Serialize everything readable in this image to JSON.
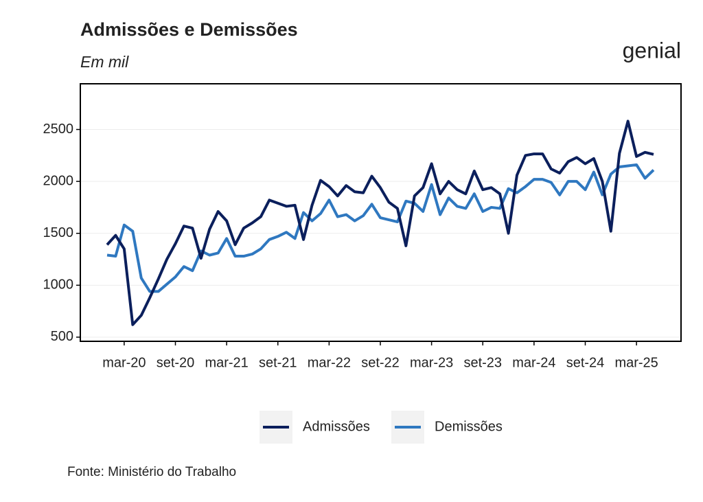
{
  "chart_data": {
    "type": "line",
    "title": "Admissões e Demissões",
    "subtitle": "Em mil",
    "logo": "genial",
    "source": "Fonte: Ministério do Trabalho",
    "categories": [
      null,
      null,
      "mar-20",
      null,
      null,
      null,
      null,
      null,
      "set-20",
      null,
      null,
      null,
      null,
      null,
      "mar-21",
      null,
      null,
      null,
      null,
      null,
      "set-21",
      null,
      null,
      null,
      null,
      null,
      "mar-22",
      null,
      null,
      null,
      null,
      null,
      "set-22",
      null,
      null,
      null,
      null,
      null,
      "mar-23",
      null,
      null,
      null,
      null,
      null,
      "set-23",
      null,
      null,
      null,
      null,
      null,
      "mar-24",
      null,
      null,
      null,
      null,
      null,
      "set-24",
      null,
      null,
      null,
      null,
      null,
      "mar-25",
      null,
      null
    ],
    "series": [
      {
        "name": "Admissões",
        "color": "#0b1f5c",
        "values": [
          1390,
          1480,
          1350,
          620,
          710,
          880,
          1060,
          1250,
          1400,
          1570,
          1550,
          1260,
          1540,
          1710,
          1620,
          1390,
          1550,
          1600,
          1660,
          1820,
          1790,
          1760,
          1770,
          1440,
          1770,
          2010,
          1950,
          1860,
          1960,
          1900,
          1890,
          2050,
          1940,
          1800,
          1740,
          1380,
          1860,
          1940,
          2170,
          1880,
          2000,
          1920,
          1880,
          2100,
          1920,
          1940,
          1880,
          1500,
          2060,
          2250,
          2265,
          2265,
          2120,
          2080,
          2190,
          2230,
          2170,
          2220,
          2000,
          1520,
          2270,
          2580,
          2240,
          2280,
          2260
        ]
      },
      {
        "name": "Demissões",
        "color": "#2f78c0",
        "values": [
          1290,
          1280,
          1580,
          1520,
          1070,
          940,
          940,
          1010,
          1080,
          1180,
          1140,
          1330,
          1290,
          1310,
          1450,
          1280,
          1280,
          1300,
          1350,
          1440,
          1470,
          1510,
          1450,
          1700,
          1620,
          1690,
          1820,
          1660,
          1680,
          1620,
          1670,
          1780,
          1650,
          1630,
          1610,
          1810,
          1790,
          1710,
          1970,
          1680,
          1840,
          1760,
          1740,
          1880,
          1710,
          1750,
          1740,
          1930,
          1890,
          1950,
          2020,
          2020,
          1990,
          1870,
          2000,
          2000,
          1920,
          2090,
          1870,
          2070,
          2140,
          2150,
          2160,
          2030,
          2110
        ]
      }
    ],
    "ylim": [
      460,
      2940
    ],
    "yticks": [
      500,
      1000,
      1500,
      2000,
      2500
    ],
    "grid": true,
    "legend": "bottom"
  }
}
